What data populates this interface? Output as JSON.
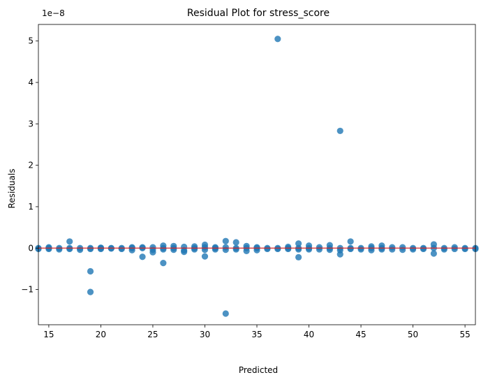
{
  "chart_data": {
    "type": "scatter",
    "title": "Residual Plot for stress_score",
    "xlabel": "Predicted",
    "ylabel": "Residuals",
    "y_scale_note": "1e−8",
    "xlim": [
      14,
      56
    ],
    "ylim": [
      -1.85,
      5.4
    ],
    "xticks": [
      15,
      20,
      25,
      30,
      35,
      40,
      45,
      50,
      55
    ],
    "yticks": [
      -1,
      0,
      1,
      2,
      3,
      4,
      5
    ],
    "ytick_labels": [
      "−1",
      "0",
      "1",
      "2",
      "3",
      "4",
      "5"
    ],
    "point_color": "#1f77b4",
    "reference_line": {
      "y": 0,
      "color": "#d62728"
    },
    "points": [
      [
        14,
        0
      ],
      [
        14,
        -0.02
      ],
      [
        15,
        0
      ],
      [
        15,
        0.02
      ],
      [
        15,
        -0.02
      ],
      [
        16,
        0
      ],
      [
        16,
        -0.03
      ],
      [
        17,
        0.16
      ],
      [
        17,
        0
      ],
      [
        17,
        -0.02
      ],
      [
        18,
        0
      ],
      [
        18,
        -0.04
      ],
      [
        19,
        -0.56
      ],
      [
        19,
        -1.06
      ],
      [
        19,
        0
      ],
      [
        19,
        -0.02
      ],
      [
        20,
        0
      ],
      [
        20,
        0.01
      ],
      [
        20,
        -0.02
      ],
      [
        21,
        0
      ],
      [
        21,
        -0.01
      ],
      [
        22,
        0
      ],
      [
        22,
        -0.02
      ],
      [
        23,
        0
      ],
      [
        23,
        -0.05
      ],
      [
        23,
        0.02
      ],
      [
        24,
        -0.21
      ],
      [
        24,
        0
      ],
      [
        24,
        0.02
      ],
      [
        25,
        -0.1
      ],
      [
        25,
        -0.04
      ],
      [
        25,
        0.02
      ],
      [
        26,
        -0.36
      ],
      [
        26,
        0.06
      ],
      [
        26,
        0
      ],
      [
        26,
        -0.03
      ],
      [
        27,
        0.05
      ],
      [
        27,
        0
      ],
      [
        27,
        -0.04
      ],
      [
        28,
        -0.09
      ],
      [
        28,
        0.03
      ],
      [
        28,
        -0.05
      ],
      [
        29,
        0.04
      ],
      [
        29,
        0
      ],
      [
        29,
        -0.03
      ],
      [
        30,
        -0.2
      ],
      [
        30,
        0.08
      ],
      [
        30,
        0.02
      ],
      [
        30,
        -0.04
      ],
      [
        31,
        0
      ],
      [
        31,
        0.02
      ],
      [
        31,
        -0.03
      ],
      [
        32,
        -1.58
      ],
      [
        32,
        0.17
      ],
      [
        32,
        0.02
      ],
      [
        32,
        -0.04
      ],
      [
        33,
        0.14
      ],
      [
        33,
        0
      ],
      [
        33,
        -0.03
      ],
      [
        34,
        0.05
      ],
      [
        34,
        -0.07
      ],
      [
        34,
        0
      ],
      [
        35,
        0
      ],
      [
        35,
        -0.05
      ],
      [
        35,
        0.02
      ],
      [
        36,
        0
      ],
      [
        36,
        -0.02
      ],
      [
        37,
        5.05
      ],
      [
        37,
        0
      ],
      [
        37,
        -0.02
      ],
      [
        38,
        0.03
      ],
      [
        38,
        0
      ],
      [
        38,
        -0.02
      ],
      [
        39,
        -0.22
      ],
      [
        39,
        0.11
      ],
      [
        39,
        0
      ],
      [
        39,
        -0.03
      ],
      [
        40,
        0.06
      ],
      [
        40,
        0
      ],
      [
        40,
        -0.03
      ],
      [
        41,
        0.02
      ],
      [
        41,
        -0.03
      ],
      [
        42,
        0.07
      ],
      [
        42,
        0
      ],
      [
        42,
        -0.04
      ],
      [
        43,
        2.83
      ],
      [
        43,
        -0.15
      ],
      [
        43,
        0
      ],
      [
        43,
        -0.05
      ],
      [
        44,
        0.16
      ],
      [
        44,
        0
      ],
      [
        44,
        -0.02
      ],
      [
        45,
        0
      ],
      [
        45,
        -0.03
      ],
      [
        46,
        0.04
      ],
      [
        46,
        -0.05
      ],
      [
        46,
        0
      ],
      [
        47,
        0.06
      ],
      [
        47,
        0
      ],
      [
        47,
        -0.03
      ],
      [
        48,
        0.02
      ],
      [
        48,
        -0.03
      ],
      [
        49,
        0.02
      ],
      [
        49,
        -0.04
      ],
      [
        50,
        0
      ],
      [
        50,
        -0.03
      ],
      [
        51,
        0
      ],
      [
        51,
        -0.02
      ],
      [
        52,
        0.09
      ],
      [
        52,
        -0.13
      ],
      [
        52,
        0
      ],
      [
        53,
        0
      ],
      [
        53,
        -0.03
      ],
      [
        54,
        0.02
      ],
      [
        54,
        -0.02
      ],
      [
        55,
        0
      ],
      [
        55,
        -0.02
      ],
      [
        56,
        0
      ],
      [
        56,
        -0.02
      ]
    ]
  }
}
